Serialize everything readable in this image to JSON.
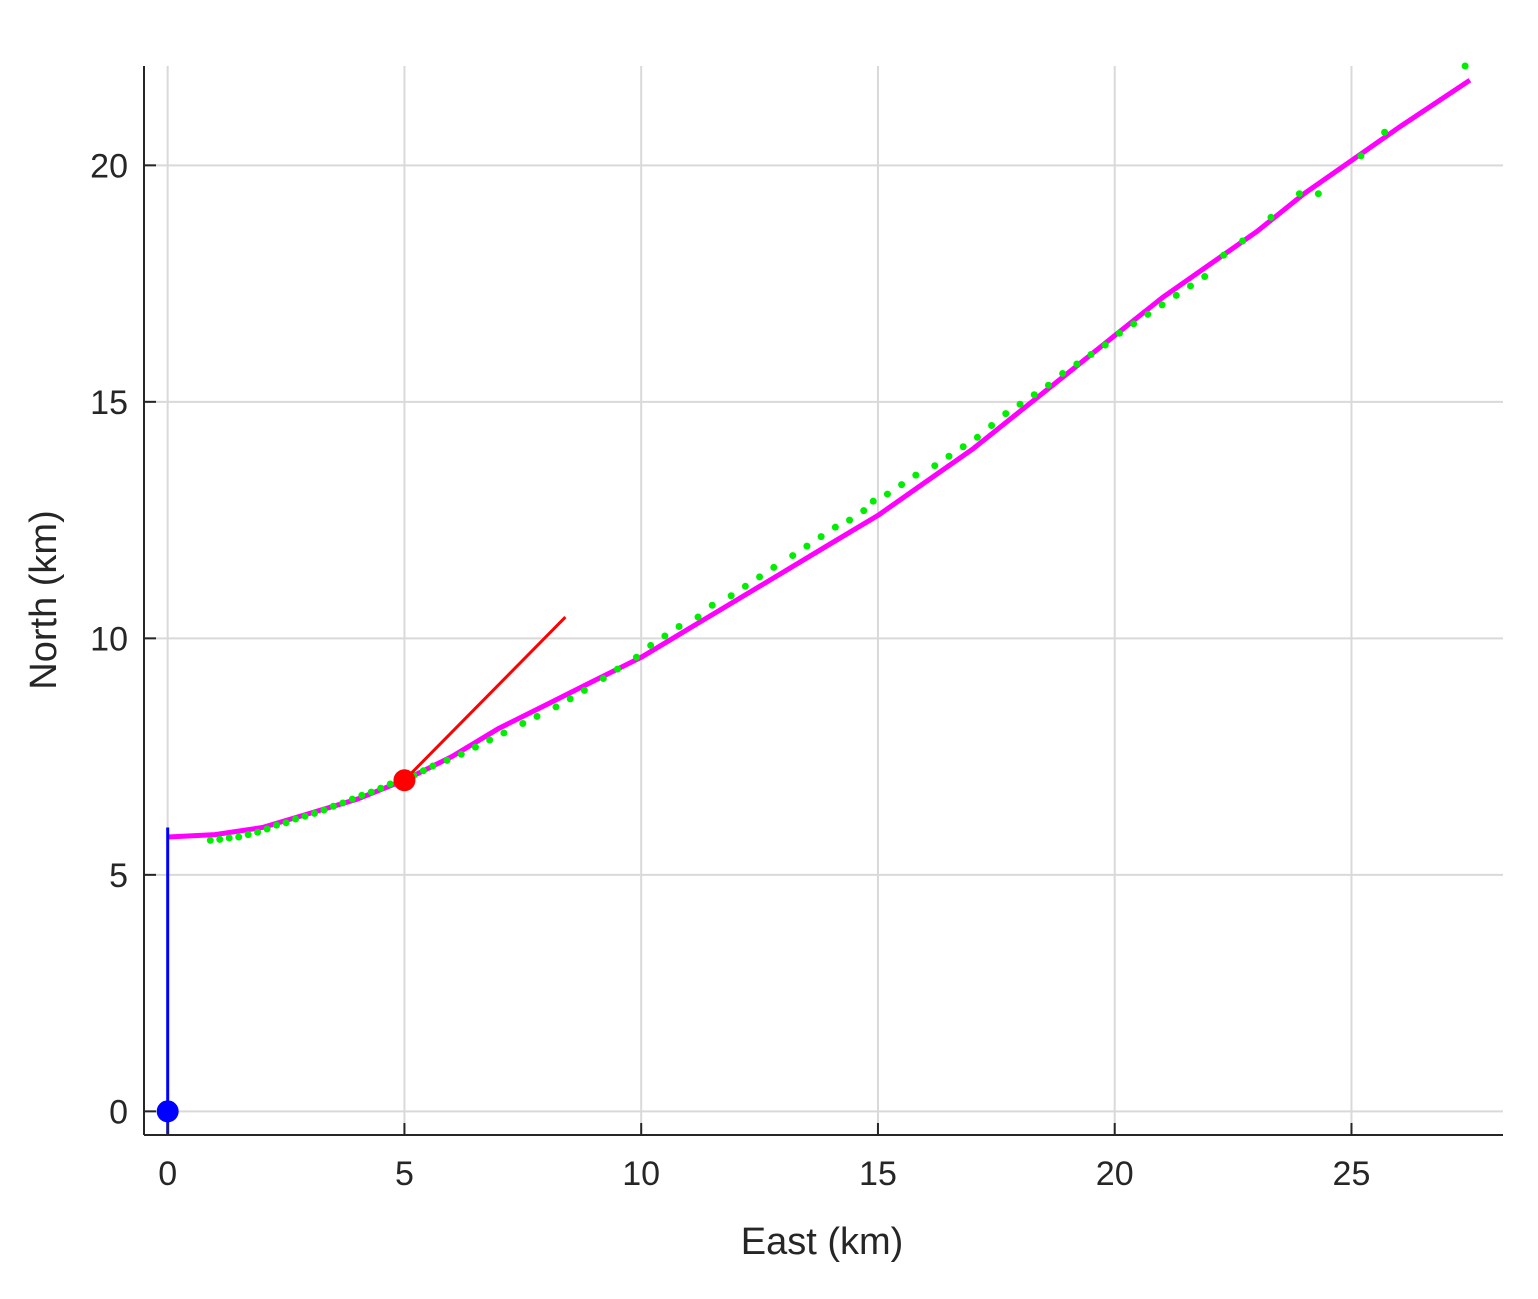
{
  "chart_data": {
    "type": "line",
    "title": "",
    "xlabel": "East (km)",
    "ylabel": "North (km)",
    "xlim": [
      -0.5,
      28.2
    ],
    "ylim": [
      -0.5,
      22.1
    ],
    "xticks": [
      0,
      5,
      10,
      15,
      20,
      25
    ],
    "yticks": [
      0,
      5,
      10,
      15,
      20
    ],
    "xtick_labels": [
      "0",
      "5",
      "10",
      "15",
      "20",
      "25"
    ],
    "ytick_labels": [
      "0",
      "5",
      "10",
      "15",
      "20"
    ],
    "grid": true,
    "colors": {
      "track": "#ff00ff",
      "detections": "#00ee00",
      "target": "#ff0000",
      "sensor": "#0000ff",
      "grid": "#d9d9d9",
      "axis": "#262626"
    },
    "series": [
      {
        "kind": "line",
        "color": "#ff00ff",
        "x": [
          0,
          1,
          2,
          3,
          4,
          5,
          6,
          7,
          8,
          9,
          10,
          11,
          12,
          13,
          14,
          15,
          16,
          17,
          18,
          19,
          20,
          21,
          22,
          23,
          24,
          25,
          26,
          27.5
        ],
        "y": [
          5.8,
          5.85,
          6.0,
          6.3,
          6.6,
          7.0,
          7.5,
          8.1,
          8.6,
          9.1,
          9.6,
          10.2,
          10.8,
          11.4,
          12.0,
          12.6,
          13.3,
          14.0,
          14.8,
          15.6,
          16.4,
          17.2,
          17.9,
          18.6,
          19.4,
          20.1,
          20.8,
          21.8
        ]
      },
      {
        "kind": "scatter",
        "color": "#00ee00",
        "x": [
          0.9,
          1.1,
          1.3,
          1.5,
          1.7,
          1.9,
          2.1,
          2.3,
          2.5,
          2.7,
          2.9,
          3.1,
          3.3,
          3.5,
          3.7,
          3.9,
          4.1,
          4.3,
          4.5,
          4.7,
          4.9,
          5.2,
          5.4,
          5.6,
          5.9,
          6.2,
          6.5,
          6.8,
          7.1,
          7.5,
          7.8,
          8.2,
          8.5,
          8.8,
          9.2,
          9.5,
          9.9,
          10.2,
          10.5,
          10.8,
          11.2,
          11.5,
          11.9,
          12.2,
          12.5,
          12.8,
          13.2,
          13.5,
          13.8,
          14.1,
          14.4,
          14.7,
          14.9,
          15.2,
          15.5,
          15.8,
          16.2,
          16.5,
          16.8,
          17.1,
          17.4,
          17.7,
          18.0,
          18.3,
          18.6,
          18.9,
          19.2,
          19.5,
          19.8,
          20.1,
          20.4,
          20.7,
          21.0,
          21.3,
          21.6,
          21.9,
          22.3,
          22.7,
          23.3,
          23.9,
          24.3,
          25.2,
          25.7,
          27.4
        ],
        "y": [
          5.73,
          5.75,
          5.78,
          5.8,
          5.85,
          5.9,
          5.97,
          6.05,
          6.1,
          6.18,
          6.24,
          6.3,
          6.37,
          6.45,
          6.52,
          6.6,
          6.68,
          6.75,
          6.83,
          6.92,
          7.0,
          7.1,
          7.2,
          7.3,
          7.42,
          7.55,
          7.7,
          7.85,
          8.0,
          8.2,
          8.35,
          8.55,
          8.72,
          8.9,
          9.15,
          9.35,
          9.6,
          9.85,
          10.05,
          10.25,
          10.45,
          10.7,
          10.9,
          11.1,
          11.3,
          11.5,
          11.75,
          11.95,
          12.15,
          12.35,
          12.5,
          12.7,
          12.9,
          13.05,
          13.25,
          13.45,
          13.65,
          13.85,
          14.05,
          14.25,
          14.5,
          14.75,
          14.95,
          15.15,
          15.35,
          15.6,
          15.8,
          16.0,
          16.2,
          16.45,
          16.65,
          16.85,
          17.05,
          17.25,
          17.45,
          17.65,
          18.1,
          18.4,
          18.9,
          19.4,
          19.4,
          20.2,
          20.7,
          22.1
        ]
      },
      {
        "kind": "vector",
        "color": "#ff0000",
        "x": [
          5.0,
          8.4
        ],
        "y": [
          7.0,
          10.45
        ]
      },
      {
        "kind": "marker",
        "color": "#ff0000",
        "x": [
          5.0
        ],
        "y": [
          7.0
        ]
      },
      {
        "kind": "line",
        "color": "#0000ff",
        "x": [
          0,
          0
        ],
        "y": [
          -0.5,
          6.0
        ]
      },
      {
        "kind": "marker",
        "color": "#0000ff",
        "x": [
          0
        ],
        "y": [
          0
        ]
      }
    ]
  }
}
